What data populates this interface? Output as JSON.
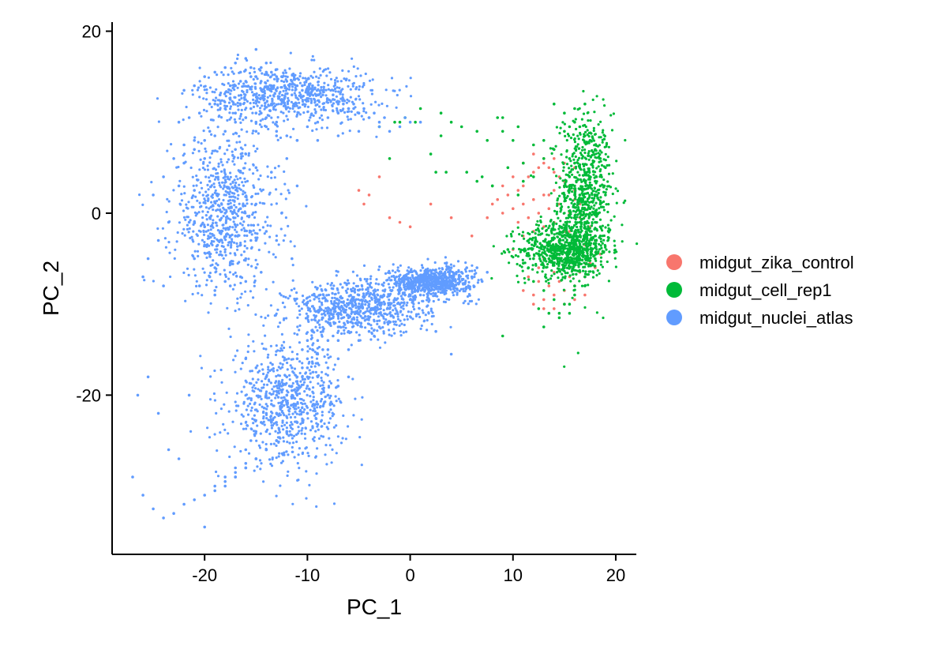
{
  "chart_data": {
    "type": "scatter",
    "title": "",
    "xlabel": "PC_1",
    "ylabel": "PC_2",
    "xlim": [
      -29,
      22
    ],
    "ylim": [
      -37.5,
      21
    ],
    "x_ticks": [
      -20,
      -10,
      0,
      10,
      20
    ],
    "x_tick_labels": [
      "-20",
      "-10",
      "0",
      "10",
      "20"
    ],
    "y_ticks": [
      20,
      0,
      -20
    ],
    "y_tick_labels": [
      "20",
      "0",
      "-20"
    ],
    "grid": false,
    "legend_position": "right",
    "series": [
      {
        "name": "midgut_zika_control",
        "color": "#F8766D",
        "x": [
          8.5,
          9.5,
          10.5,
          11.0,
          11.5,
          12.0,
          12.5,
          13.0,
          13.5,
          14.0,
          14.5,
          15.0,
          15.5,
          16.0,
          9.0,
          10.0,
          11.0,
          12.0,
          13.0,
          14.0,
          15.0,
          16.0,
          17.0,
          10.5,
          11.5,
          12.5,
          13.5,
          14.5,
          15.5,
          16.5,
          17.5,
          11.0,
          12.0,
          13.0,
          14.0,
          15.0,
          16.0,
          17.0,
          18.0,
          10.0,
          11.5,
          13.0,
          14.5,
          16.0,
          17.5,
          12.5,
          14.0,
          15.5,
          17.0,
          18.5,
          7.5,
          8.0,
          9.0,
          10.0,
          11.0,
          12.0,
          13.0,
          14.0,
          15.0,
          16.0,
          11.5,
          12.5,
          13.5,
          14.5,
          15.5,
          16.5,
          17.5,
          11.0,
          12.0,
          13.0,
          14.0,
          15.0,
          16.0,
          17.0,
          12.0,
          13.0,
          14.0,
          15.0,
          16.0,
          17.0,
          18.0,
          13.5,
          14.5,
          15.5,
          16.5,
          -5.0,
          -4.0,
          -3.0,
          -2.0,
          0.0,
          2.0,
          4.0,
          6.0,
          -1.0,
          -4.5
        ],
        "y": [
          1.5,
          2.0,
          2.5,
          3.0,
          4.0,
          4.5,
          5.0,
          5.5,
          5.0,
          4.5,
          4.0,
          3.5,
          3.0,
          2.5,
          0.0,
          0.5,
          1.0,
          1.5,
          2.0,
          2.5,
          3.0,
          1.5,
          0.5,
          -1.0,
          -0.5,
          0.0,
          0.5,
          1.0,
          0.0,
          -0.5,
          -1.5,
          -2.5,
          -2.0,
          -1.5,
          -1.0,
          -2.0,
          -3.0,
          -3.5,
          -3.0,
          -4.0,
          -4.5,
          -5.0,
          -4.5,
          -4.0,
          -3.5,
          -6.0,
          -6.5,
          -6.0,
          -5.5,
          -4.5,
          -0.5,
          1.0,
          3.0,
          4.0,
          5.5,
          6.5,
          6.0,
          6.0,
          5.5,
          5.0,
          -7.0,
          -7.5,
          -8.0,
          -7.5,
          -7.0,
          -6.5,
          -5.5,
          -8.5,
          -9.0,
          -9.5,
          -9.0,
          -8.5,
          -8.0,
          -7.0,
          -10.0,
          -10.5,
          -10.5,
          -10.0,
          -9.5,
          -9.0,
          -6.0,
          2.0,
          -3.0,
          -2.0,
          1.0,
          2.5,
          2.0,
          4.0,
          -0.5,
          -1.5,
          1.0,
          -0.5,
          -2.5,
          -1.0,
          1.0
        ]
      },
      {
        "name": "midgut_cell_rep1",
        "color": "#00BA38",
        "x": [
          15.0,
          15.5,
          16.0,
          16.5,
          17.0,
          17.5,
          18.0,
          18.5,
          19.0,
          15.5,
          16.0,
          16.5,
          17.0,
          17.5,
          18.0,
          18.5,
          15.0,
          15.5,
          16.0,
          16.5,
          17.0,
          17.5,
          18.0,
          18.5,
          16.0,
          16.5,
          17.0,
          17.5,
          18.0,
          18.5,
          19.0,
          14.5,
          15.0,
          15.5,
          16.0,
          16.5,
          17.0,
          17.5,
          18.0,
          18.5,
          15.5,
          16.0,
          16.5,
          17.0,
          17.5,
          18.0,
          14.0,
          14.5,
          15.0,
          15.5,
          16.0,
          16.5,
          17.0,
          17.5,
          18.0,
          11.0,
          11.5,
          12.0,
          12.5,
          13.0,
          13.5,
          14.0,
          14.5,
          15.0,
          15.5,
          16.0,
          16.5,
          17.0,
          17.5,
          12.0,
          13.0,
          14.0,
          15.0,
          16.0,
          17.0,
          14.0,
          15.0,
          16.0,
          17.0,
          12.5,
          13.5,
          14.5,
          15.5,
          11.0,
          12.0,
          13.0,
          14.0,
          10.0,
          9.0,
          8.5,
          8.0,
          9.5,
          10.5,
          13.0,
          14.5,
          15.5,
          16.0,
          17.0,
          12.0,
          13.0,
          11.0,
          9.5,
          15.0,
          16.0,
          -1.5,
          -0.5,
          0.5,
          1.0,
          2.0,
          2.5,
          3.0,
          3.5,
          4.0,
          5.5,
          6.5,
          7.0,
          7.5,
          8.0,
          9.0,
          -3.0,
          -1.0,
          -2.0,
          5.0,
          6.5,
          10.5,
          3.0,
          9.0
        ],
        "y": [
          9.0,
          9.5,
          10.0,
          9.5,
          8.5,
          8.0,
          7.0,
          6.0,
          5.0,
          6.0,
          5.5,
          5.0,
          4.5,
          4.0,
          3.5,
          3.0,
          3.0,
          2.5,
          2.0,
          1.5,
          1.0,
          0.5,
          0.0,
          1.0,
          -0.5,
          -1.0,
          -1.5,
          -2.0,
          -2.5,
          -1.5,
          2.0,
          -3.0,
          -3.5,
          -4.0,
          -4.5,
          -5.0,
          -4.0,
          -3.5,
          -3.0,
          -2.5,
          4.0,
          3.0,
          2.0,
          1.0,
          0.0,
          -1.0,
          -5.0,
          -5.5,
          -6.0,
          -5.5,
          -5.0,
          -4.5,
          -4.0,
          -3.5,
          -5.0,
          -5.5,
          -6.0,
          -5.0,
          -4.5,
          -4.0,
          -5.0,
          -5.5,
          -4.5,
          2.0,
          3.0,
          1.0,
          0.0,
          -1.0,
          -2.0,
          -7.5,
          -8.5,
          -9.5,
          -10.0,
          -9.0,
          -8.0,
          12.0,
          11.0,
          11.5,
          12.0,
          -10.5,
          -11.0,
          -11.5,
          -11.0,
          3.5,
          4.0,
          6.0,
          7.0,
          8.0,
          9.0,
          10.5,
          3.0,
          5.0,
          2.0,
          -12.5,
          -11.0,
          -10.0,
          -8.0,
          -7.0,
          7.5,
          8.0,
          5.5,
          -4.0,
          -6.0,
          -2.5,
          10.0,
          10.5,
          10.0,
          11.5,
          6.5,
          4.5,
          8.5,
          4.5,
          10.0,
          4.5,
          9.0,
          4.0,
          8.0,
          3.0,
          10.5,
          9.5,
          10.0,
          6.0,
          9.5,
          3.5,
          9.5,
          11.0,
          -13.5
        ],
        "dense_regions": [
          {
            "cx": 17.0,
            "cy": 2.0,
            "sx": 1.3,
            "sy": 4.5
          },
          {
            "cx": 15.0,
            "cy": -4.0,
            "sx": 2.2,
            "sy": 1.5
          }
        ]
      },
      {
        "name": "midgut_nuclei_atlas",
        "color": "#619CFF",
        "x": [
          -22.0,
          -21.0,
          -20.0,
          -19.0,
          -18.0,
          -17.0,
          -16.0,
          -15.0,
          -14.0,
          -22.5,
          -21.5,
          -20.5,
          -19.5,
          -18.5,
          -17.5,
          -16.5,
          -15.5,
          -14.5,
          -13.5,
          -23.0,
          -22.0,
          -21.0,
          -20.0,
          -19.0,
          -18.0,
          -17.0,
          -16.0,
          -15.0,
          -14.0,
          -13.0,
          -22.5,
          -21.0,
          -19.5,
          -18.0,
          -16.5,
          -15.0,
          -13.5,
          -21.0,
          -19.5,
          -18.0,
          -16.5,
          -15.0,
          -20.0,
          -18.5,
          -17.0,
          -15.5,
          -19.0,
          -17.5,
          -16.0,
          -19.5,
          -18.0,
          -16.5,
          -15.0,
          -20.5,
          -19.0,
          -17.5,
          -16.0,
          -14.5,
          -21.0,
          -19.5,
          -18.0,
          -16.5,
          -15.0,
          -21.5,
          -20.0,
          -18.5,
          -17.0,
          -15.5,
          -14.0,
          -19.0,
          -24.0,
          -25.0,
          -23.5,
          -24.5,
          -25.5,
          -26.0,
          -24.0,
          -12.0,
          -11.0,
          -12.5,
          -13.0,
          -11.5,
          -19.0,
          -18.0,
          -17.0,
          -16.0,
          -15.0,
          -14.0,
          -13.0,
          -12.0,
          -11.0,
          -10.0,
          -9.0,
          -8.0,
          -7.0,
          -6.0,
          -5.0,
          -4.0,
          -3.0,
          -18.5,
          -17.5,
          -16.5,
          -15.5,
          -14.5,
          -13.5,
          -12.5,
          -11.5,
          -10.5,
          -9.5,
          -8.5,
          -7.5,
          -6.5,
          -5.5,
          -4.5,
          -3.5,
          -2.5,
          -17.0,
          -16.0,
          -15.0,
          -14.0,
          -13.0,
          -12.0,
          -11.0,
          -10.0,
          -9.0,
          -8.0,
          -7.0,
          -6.0,
          -5.0,
          -4.0,
          -16.5,
          -15.5,
          -14.5,
          -13.5,
          -12.5,
          -11.5,
          -10.5,
          -9.5,
          -8.5,
          -7.5,
          -6.5,
          -5.5,
          -15.0,
          -13.0,
          -11.0,
          -9.0,
          -7.0,
          -5.0,
          -17.0,
          -16.0,
          -20.0,
          -22.0,
          -21.0,
          -19.5,
          -3.0,
          -2.0,
          -1.0,
          0.0,
          1.0,
          -0.5,
          -12.0,
          -13.0,
          -14.0,
          -15.0,
          -16.0,
          -11.0,
          -10.0,
          -9.0,
          -8.0,
          -7.0,
          -6.0,
          -5.0,
          -4.0,
          -3.0,
          -2.0,
          -1.0,
          0.0,
          1.0,
          2.0,
          3.0,
          4.0,
          5.0,
          6.0,
          7.0,
          -11.5,
          -10.5,
          -9.5,
          -8.5,
          -7.5,
          -6.5,
          -5.5,
          -4.5,
          -3.5,
          -2.5,
          -1.5,
          -0.5,
          0.5,
          1.5,
          2.5,
          3.5,
          4.5,
          5.5,
          6.5,
          7.5,
          -12.0,
          -11.0,
          -10.0,
          -9.0,
          -8.0,
          -7.0,
          -6.0,
          -5.0,
          -4.0,
          -3.0,
          -2.0,
          -1.0,
          0.0,
          1.0,
          2.0,
          -13.0,
          -12.0,
          -11.0,
          -10.0,
          -9.0,
          -8.0,
          -7.0,
          -6.0,
          -5.0,
          -4.0,
          -3.0,
          -2.0,
          -14.0,
          -13.5,
          -13.0,
          -12.5,
          -12.0,
          -11.5,
          -11.0,
          -10.5,
          -10.0,
          -9.5,
          -9.0,
          -8.5,
          -8.0,
          -7.5,
          -7.0,
          -6.5,
          -6.0,
          -5.5,
          -5.0,
          -16.0,
          -15.5,
          -15.0,
          -14.5,
          -14.0,
          -13.5,
          -13.0,
          -12.5,
          -12.0,
          -11.5,
          -11.0,
          -10.5,
          -10.0,
          -9.5,
          -9.0,
          -8.5,
          -8.0,
          -7.5,
          -7.0,
          -15.0,
          -14.0,
          -13.0,
          -12.0,
          -11.0,
          -10.0,
          -9.0,
          -8.0,
          -7.0,
          -6.0,
          -17.0,
          -16.0,
          -15.0,
          -14.0,
          -13.0,
          -12.0,
          -11.0,
          -10.0,
          -9.0,
          -8.0,
          -18.0,
          -17.0,
          -16.0,
          -15.0,
          -14.0,
          -13.0,
          -12.0,
          -11.0,
          -10.0,
          -19.0,
          -18.0,
          -17.0,
          -16.0,
          -15.0,
          -14.0,
          -13.0,
          -12.0,
          -20.0,
          -19.0,
          -18.0,
          -17.0,
          -16.0,
          -21.0,
          -22.0,
          -23.0,
          -24.0,
          -25.0,
          -26.0,
          -27.0,
          -26.5,
          -25.5,
          -24.5,
          -23.5,
          -22.5,
          -20.0,
          -21.5,
          -3.5,
          4.0,
          2.5
        ],
        "y": [
          13.5,
          14.0,
          15.0,
          15.5,
          16.0,
          16.5,
          17.0,
          18.0,
          16.5,
          10.0,
          10.5,
          11.0,
          12.0,
          13.0,
          14.0,
          14.5,
          15.0,
          14.5,
          14.0,
          6.0,
          5.5,
          7.0,
          8.0,
          8.5,
          9.0,
          10.0,
          10.5,
          11.0,
          10.5,
          10.0,
          3.0,
          2.5,
          3.5,
          4.0,
          4.5,
          5.0,
          4.5,
          -1.0,
          -0.5,
          0.0,
          0.5,
          1.0,
          -3.5,
          -3.0,
          -2.5,
          -2.0,
          -6.0,
          -5.5,
          -5.0,
          -7.0,
          -7.5,
          -7.0,
          -6.0,
          -8.0,
          -8.5,
          -8.0,
          -7.5,
          -6.5,
          -5.0,
          -4.5,
          -4.0,
          -3.5,
          -3.0,
          -1.0,
          -1.5,
          -2.0,
          -2.5,
          -3.0,
          -2.0,
          -9.0,
          4.0,
          2.0,
          -1.0,
          -3.0,
          -5.0,
          -7.0,
          -8.0,
          6.0,
          3.0,
          0.0,
          -3.0,
          -5.0,
          12.0,
          11.5,
          11.0,
          10.5,
          10.0,
          9.5,
          9.0,
          8.5,
          8.0,
          9.5,
          10.0,
          10.5,
          11.0,
          11.5,
          11.0,
          10.5,
          10.0,
          13.0,
          12.5,
          12.0,
          11.5,
          11.0,
          12.0,
          12.5,
          13.0,
          13.5,
          14.0,
          13.5,
          13.0,
          12.5,
          12.0,
          11.5,
          11.0,
          10.5,
          14.0,
          14.5,
          15.0,
          15.5,
          15.0,
          14.5,
          14.0,
          13.5,
          13.0,
          12.5,
          12.0,
          11.5,
          11.0,
          10.5,
          15.5,
          16.0,
          16.0,
          15.5,
          15.0,
          14.5,
          14.0,
          13.5,
          13.0,
          12.5,
          12.0,
          11.5,
          9.0,
          8.5,
          8.0,
          8.0,
          8.5,
          9.0,
          7.0,
          6.5,
          6.0,
          7.5,
          8.0,
          9.0,
          9.5,
          9.0,
          9.5,
          10.0,
          10.0,
          10.5,
          -20.0,
          -19.0,
          -18.0,
          -17.0,
          -16.0,
          -18.5,
          -17.0,
          -15.5,
          -14.0,
          -12.5,
          -11.5,
          -10.5,
          -10.0,
          -9.5,
          -9.0,
          -8.5,
          -8.0,
          -7.5,
          -7.0,
          -6.5,
          -6.0,
          -6.5,
          -7.0,
          -7.5,
          -19.5,
          -18.0,
          -16.5,
          -15.0,
          -13.5,
          -12.5,
          -11.5,
          -11.0,
          -10.5,
          -10.0,
          -9.5,
          -9.0,
          -8.5,
          -8.0,
          -7.5,
          -7.0,
          -6.5,
          -6.0,
          -6.0,
          -6.5,
          -21.0,
          -19.5,
          -18.0,
          -16.5,
          -15.0,
          -14.0,
          -13.0,
          -12.0,
          -11.5,
          -11.0,
          -10.5,
          -10.0,
          -9.5,
          -9.0,
          -8.5,
          -22.0,
          -21.0,
          -20.0,
          -19.0,
          -18.0,
          -17.0,
          -16.0,
          -15.0,
          -14.0,
          -13.0,
          -12.5,
          -12.0,
          -24.0,
          -23.0,
          -22.0,
          -21.0,
          -20.0,
          -19.0,
          -18.0,
          -17.0,
          -16.0,
          -15.0,
          -14.0,
          -13.0,
          -12.0,
          -11.5,
          -11.0,
          -10.5,
          -10.0,
          -9.5,
          -9.0,
          -26.0,
          -25.0,
          -24.0,
          -23.0,
          -22.0,
          -21.0,
          -20.0,
          -19.0,
          -18.0,
          -17.0,
          -16.0,
          -15.0,
          -14.0,
          -13.0,
          -12.0,
          -11.5,
          -11.0,
          -10.5,
          -10.0,
          -27.0,
          -26.0,
          -25.0,
          -24.0,
          -23.0,
          -22.0,
          -21.0,
          -20.0,
          -19.0,
          -18.0,
          -28.0,
          -27.5,
          -27.0,
          -26.0,
          -25.0,
          -24.0,
          -23.0,
          -22.0,
          -21.0,
          -20.0,
          -29.0,
          -28.5,
          -28.0,
          -27.0,
          -26.0,
          -25.0,
          -24.0,
          -23.0,
          -22.0,
          -30.0,
          -29.5,
          -29.0,
          -28.0,
          -27.0,
          -26.0,
          -25.0,
          -24.0,
          -31.0,
          -30.5,
          -30.0,
          -29.0,
          -28.0,
          -31.5,
          -32.0,
          -33.0,
          -33.5,
          -32.5,
          -31.0,
          -29.0,
          -20.0,
          -18.0,
          -22.0,
          -26.0,
          -27.0,
          -34.5,
          -20.0,
          -13.5,
          -15.5,
          -13.0
        ],
        "dense_regions": [
          {
            "cx": -12.0,
            "cy": 13.0,
            "sx": 4.2,
            "sy": 1.6
          },
          {
            "cx": -18.0,
            "cy": 0.0,
            "sx": 2.6,
            "sy": 4.3
          },
          {
            "cx": -12.0,
            "cy": -21.0,
            "sx": 2.8,
            "sy": 3.2
          },
          {
            "cx": -5.0,
            "cy": -10.5,
            "sx": 3.5,
            "sy": 1.5
          },
          {
            "cx": 2.0,
            "cy": -7.5,
            "sx": 2.0,
            "sy": 0.8
          }
        ]
      }
    ]
  }
}
